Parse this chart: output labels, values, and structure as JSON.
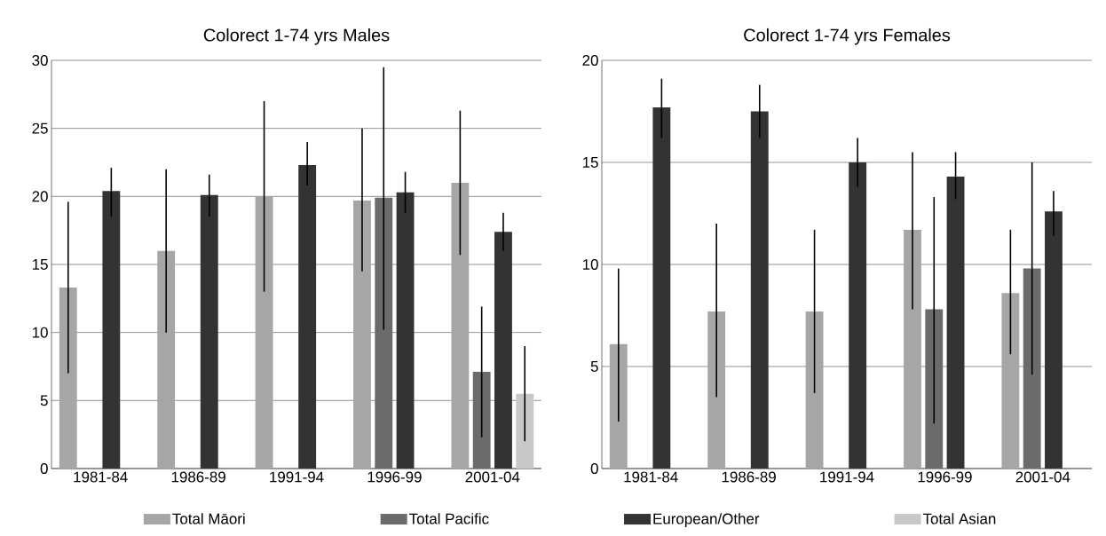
{
  "chart_data": [
    {
      "type": "bar",
      "title": "Colorect   1-74 yrs   Males",
      "categories": [
        "1981-84",
        "1986-89",
        "1991-94",
        "1996-99",
        "2001-04"
      ],
      "series": [
        {
          "name": "Total Māori",
          "color": "#a6a6a6",
          "values": [
            13.3,
            16,
            20,
            19.7,
            21
          ],
          "errors": [
            [
              7,
              19.6
            ],
            [
              10,
              22
            ],
            [
              13,
              27
            ],
            [
              14.5,
              25
            ],
            [
              15.7,
              26.3
            ]
          ]
        },
        {
          "name": "Total Pacific",
          "color": "#6b6b6b",
          "values": [
            null,
            null,
            null,
            19.9,
            7.1
          ],
          "errors": [
            null,
            null,
            null,
            [
              10.2,
              29.5
            ],
            [
              2.3,
              11.9
            ]
          ]
        },
        {
          "name": "European/Other",
          "color": "#333333",
          "values": [
            20.4,
            20.1,
            22.3,
            20.3,
            17.4
          ],
          "errors": [
            [
              18.5,
              22.1
            ],
            [
              18.5,
              21.6
            ],
            [
              20.8,
              24
            ],
            [
              18.8,
              21.8
            ],
            [
              16,
              18.8
            ]
          ]
        },
        {
          "name": "Total Asian",
          "color": "#c8c8c8",
          "values": [
            null,
            null,
            null,
            null,
            5.5
          ],
          "errors": [
            null,
            null,
            null,
            null,
            [
              2,
              9
            ]
          ]
        }
      ],
      "ylim": [
        0,
        30
      ],
      "yticks": [
        0,
        5,
        10,
        15,
        20,
        25,
        30
      ],
      "grid": "y",
      "legend": "bottom"
    },
    {
      "type": "bar",
      "title": "Colorect   1-74 yrs   Females",
      "categories": [
        "1981-84",
        "1986-89",
        "1991-94",
        "1996-99",
        "2001-04"
      ],
      "series": [
        {
          "color": "#a6a6a6",
          "values": [
            6.1,
            7.7,
            7.7,
            11.7,
            8.6
          ],
          "errors": [
            [
              2.3,
              9.8
            ],
            [
              3.5,
              12
            ],
            [
              3.7,
              11.7
            ],
            [
              7.8,
              15.5
            ],
            [
              5.6,
              11.7
            ]
          ]
        },
        {
          "color": "#6b6b6b",
          "values": [
            null,
            null,
            null,
            7.8,
            9.8
          ],
          "errors": [
            null,
            null,
            null,
            [
              2.2,
              13.3
            ],
            [
              4.6,
              15
            ]
          ]
        },
        {
          "color": "#333333",
          "values": [
            17.7,
            17.5,
            15,
            14.3,
            12.6
          ],
          "errors": [
            [
              16.2,
              19.1
            ],
            [
              16.2,
              18.8
            ],
            [
              13.8,
              16.2
            ],
            [
              13.2,
              15.5
            ],
            [
              11.4,
              13.6
            ]
          ]
        }
      ],
      "ylim": [
        0,
        20
      ],
      "yticks": [
        0,
        5,
        10,
        15,
        20
      ],
      "grid": "y"
    }
  ]
}
